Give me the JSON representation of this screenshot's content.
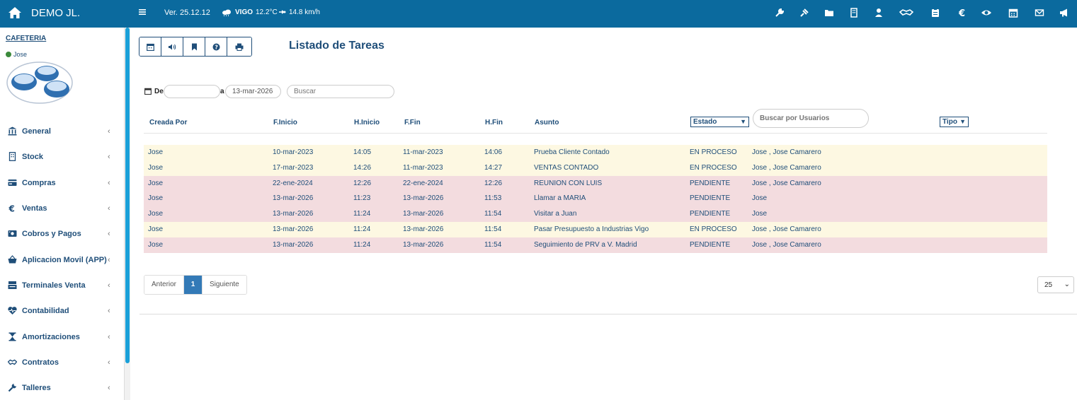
{
  "topbar": {
    "brand": "DEMO JL.",
    "version": "Ver. 25.12.12",
    "weather_city": "VIGO",
    "weather_temp": "12.2°C",
    "weather_wind": "14.8 km/h",
    "icons": [
      "wrench-icon",
      "pin-icon",
      "folder-icon",
      "building-icon",
      "user-icon",
      "handshake-icon",
      "clipboard-icon",
      "euro-icon",
      "eye-icon",
      "calendar-icon",
      "mail-icon",
      "megaphone-icon"
    ],
    "bar_color": "#0b6a9e"
  },
  "sidebar": {
    "title": "CAFETERIA",
    "user": "Jose",
    "items": [
      {
        "label": "General",
        "icon": "bank-icon"
      },
      {
        "label": "Stock",
        "icon": "building-icon"
      },
      {
        "label": "Compras",
        "icon": "card-icon"
      },
      {
        "label": "Ventas",
        "icon": "euro-icon"
      },
      {
        "label": "Cobros y Pagos",
        "icon": "money-icon"
      },
      {
        "label": "Aplicacion Movil (APP)",
        "icon": "basket-icon"
      },
      {
        "label": "Terminales Venta",
        "icon": "register-icon"
      },
      {
        "label": "Contabilidad",
        "icon": "heartbeat-icon"
      },
      {
        "label": "Amortizaciones",
        "icon": "hourglass-icon"
      },
      {
        "label": "Contratos",
        "icon": "handshake-icon"
      },
      {
        "label": "Talleres",
        "icon": "wrench-icon"
      }
    ]
  },
  "toolbar": {
    "buttons": [
      "calendar-icon",
      "volume-icon",
      "bookmark-icon",
      "help-icon",
      "print-icon"
    ]
  },
  "page": {
    "title": "Listado de Tareas"
  },
  "filters": {
    "de_label": "De",
    "de_value": "",
    "a_label": "a",
    "a_value": "13-mar-2026",
    "search_placeholder": "Buscar",
    "users_placeholder": "Buscar por Usuarios"
  },
  "table": {
    "headers": {
      "creada": "Creada Por",
      "finicio": "F.Inicio",
      "hinicio": "H.Inicio",
      "ffin": "F.Fin",
      "hfin": "H.Fin",
      "asunto": "Asunto",
      "estado": "Estado",
      "tipo": "Tipo"
    },
    "rows": [
      {
        "creada": "Jose",
        "finicio": "10-mar-2023",
        "hinicio": "14:05",
        "ffin": "11-mar-2023",
        "hfin": "14:06",
        "asunto": "Prueba Cliente Contado",
        "estado": "EN PROCESO",
        "usuarios": "Jose , Jose Camarero"
      },
      {
        "creada": "Jose",
        "finicio": "17-mar-2023",
        "hinicio": "14:26",
        "ffin": "11-mar-2023",
        "hfin": "14:27",
        "asunto": "VENTAS CONTADO",
        "estado": "EN PROCESO",
        "usuarios": "Jose , Jose Camarero"
      },
      {
        "creada": "Jose",
        "finicio": "22-ene-2024",
        "hinicio": "12:26",
        "ffin": "22-ene-2024",
        "hfin": "12:26",
        "asunto": "REUNION CON LUIS",
        "estado": "PENDIENTE",
        "usuarios": "Jose , Jose Camarero"
      },
      {
        "creada": "Jose",
        "finicio": "13-mar-2026",
        "hinicio": "11:23",
        "ffin": "13-mar-2026",
        "hfin": "11:53",
        "asunto": "Llamar a MARIA",
        "estado": "PENDIENTE",
        "usuarios": "Jose"
      },
      {
        "creada": "Jose",
        "finicio": "13-mar-2026",
        "hinicio": "11:24",
        "ffin": "13-mar-2026",
        "hfin": "11:54",
        "asunto": "Visitar a Juan",
        "estado": "PENDIENTE",
        "usuarios": "Jose"
      },
      {
        "creada": "Jose",
        "finicio": "13-mar-2026",
        "hinicio": "11:24",
        "ffin": "13-mar-2026",
        "hfin": "11:54",
        "asunto": "Pasar Presupuesto a Industrias Vigo",
        "estado": "EN PROCESO",
        "usuarios": "Jose , Jose Camarero"
      },
      {
        "creada": "Jose",
        "finicio": "13-mar-2026",
        "hinicio": "11:24",
        "ffin": "13-mar-2026",
        "hfin": "11:54",
        "asunto": "Seguimiento de PRV a V. Madrid",
        "estado": "PENDIENTE",
        "usuarios": "Jose , Jose Camarero"
      }
    ],
    "colors": {
      "en_proceso": "#fdf8e2",
      "pendiente": "#f3dcdf"
    }
  },
  "pagination": {
    "prev": "Anterior",
    "current": "1",
    "next": "Siguiente",
    "page_size": "25"
  }
}
